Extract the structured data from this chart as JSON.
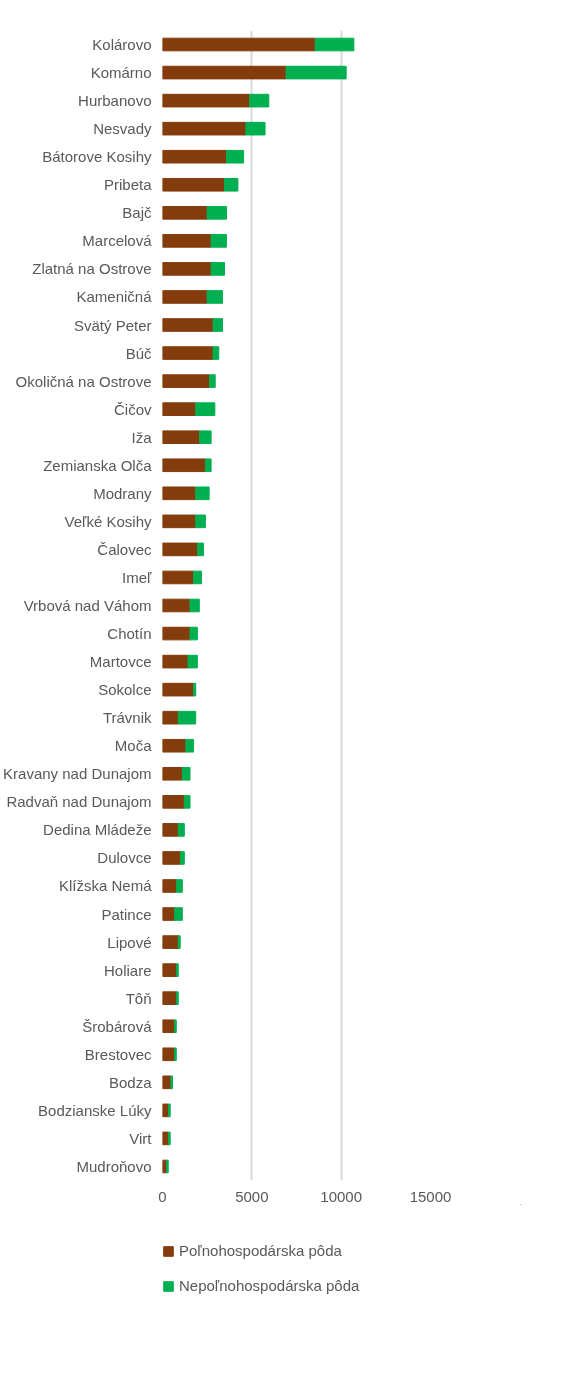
{
  "chart_data": {
    "type": "bar",
    "orientation": "horizontal",
    "stacked": true,
    "categories": [
      "Kolárovo",
      "Komárno",
      "Hurbanovo",
      "Nesvady",
      "Bátorove Kosihy",
      "Pribeta",
      "Bajč",
      "Marcelová",
      "Zlatná na Ostrove",
      "Kameničná",
      "Svätý Peter",
      "Búč",
      "Okoličná na Ostrove",
      "Čičov",
      "Iža",
      "Zemianska Olča",
      "Modrany",
      "Veľké Kosihy",
      "Čalovec",
      "Imeľ",
      "Vrbová nad Váhom",
      "Chotín",
      "Martovce",
      "Sokolce",
      "Trávnik",
      "Moča",
      "Kravany nad Dunajom",
      "Radvaň nad Dunajom",
      "Dedina Mládeže",
      "Dulovce",
      "Klížska Nemá",
      "Patince",
      "Lipové",
      "Holiare",
      "Tôň",
      "Šrobárová",
      "Brestovec",
      "Bodza",
      "Bodzianske Lúky",
      "Virt",
      "Mudroňovo"
    ],
    "series": [
      {
        "name": "Poľnohospodárska pôda",
        "color": "#843c0c",
        "values": [
          8550,
          6920,
          4880,
          4670,
          3580,
          3470,
          2500,
          2720,
          2720,
          2500,
          2830,
          2830,
          2630,
          1860,
          2080,
          2400,
          1860,
          1860,
          1970,
          1740,
          1540,
          1540,
          1430,
          1740,
          880,
          1310,
          1110,
          1220,
          880,
          1010,
          790,
          680,
          880,
          790,
          790,
          680,
          680,
          470,
          340,
          340,
          230
        ]
      },
      {
        "name": "Nepoľnohospodárska pôda",
        "color": "#00b050",
        "values": [
          2160,
          3360,
          1070,
          1070,
          960,
          750,
          1080,
          860,
          750,
          860,
          530,
          320,
          320,
          1070,
          640,
          320,
          750,
          540,
          320,
          440,
          520,
          410,
          520,
          120,
          980,
          430,
          430,
          320,
          340,
          210,
          320,
          430,
          110,
          90,
          90,
          90,
          90,
          90,
          90,
          90,
          90
        ]
      }
    ],
    "xlim": [
      0,
      15000
    ],
    "xticks": [
      0,
      5000,
      10000,
      15000
    ],
    "grid": "x",
    "legend": "bottom"
  }
}
